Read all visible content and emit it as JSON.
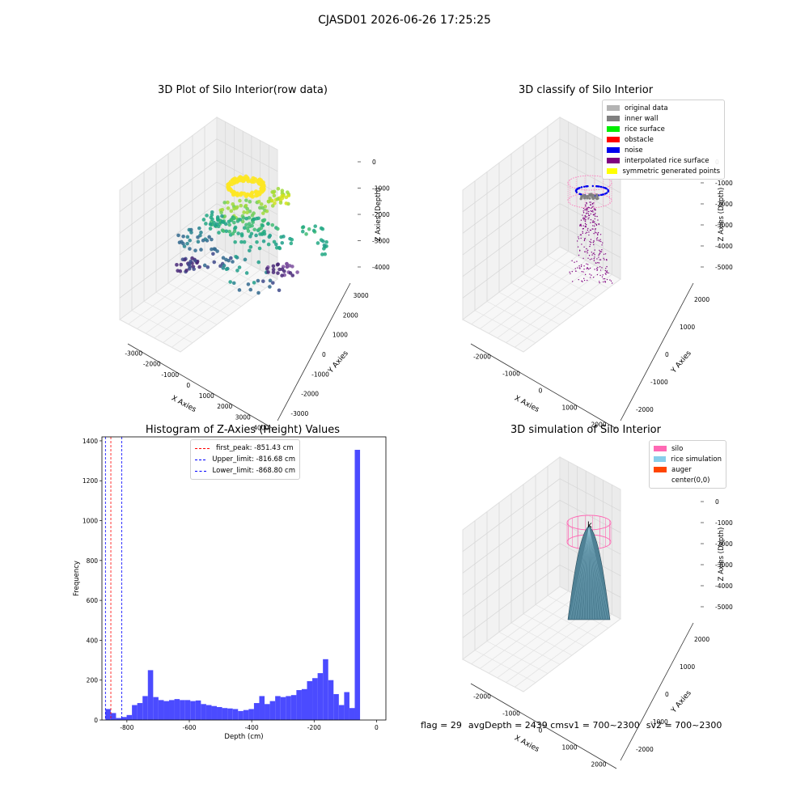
{
  "suptitle": "CJASD01 2026-06-26 17:25:25",
  "plots": {
    "raw": {
      "title": "3D Plot of Silo Interior(row data)",
      "xlabel": "X Axies",
      "ylabel": "Y Axies",
      "zlabel": "Z Axies (Depth)",
      "xticks": [
        "-3000",
        "-2000",
        "-1000",
        "0",
        "1000",
        "2000",
        "3000",
        "4000"
      ],
      "yticks": [
        "-3000",
        "-2000",
        "-1000",
        "0",
        "1000",
        "2000",
        "3000"
      ],
      "zticks": [
        "0",
        "-1000",
        "-2000",
        "-3000",
        "-4000"
      ]
    },
    "classify": {
      "title": "3D classify of Silo Interior",
      "xlabel": "X Axies",
      "ylabel": "Y Axies",
      "zlabel": "Z Axies (Depth)",
      "xticks": [
        "-2000",
        "-1000",
        "0",
        "1000",
        "2000"
      ],
      "yticks": [
        "-2000",
        "-1000",
        "0",
        "1000",
        "2000"
      ],
      "zticks": [
        "0",
        "-1000",
        "-2000",
        "-3000",
        "-4000",
        "-5000"
      ],
      "legend": [
        {
          "label": "original data",
          "color": "#b4b4b4"
        },
        {
          "label": "inner wall",
          "color": "#808080"
        },
        {
          "label": "rice surface",
          "color": "#00ee00"
        },
        {
          "label": "obstacle",
          "color": "#ff0000"
        },
        {
          "label": "noise",
          "color": "#0000ee"
        },
        {
          "label": "interpolated rice surface",
          "color": "#800080"
        },
        {
          "label": "symmetric generated points",
          "color": "#ffff00"
        }
      ]
    },
    "simulation": {
      "title": "3D simulation of Silo Interior",
      "xlabel": "X Axies",
      "ylabel": "Y Axies",
      "zlabel": "Z Axies (Depth)",
      "xticks": [
        "-2000",
        "-1000",
        "0",
        "1000",
        "2000"
      ],
      "yticks": [
        "-2000",
        "-1000",
        "0",
        "1000",
        "2000"
      ],
      "zticks": [
        "0",
        "-1000",
        "-2000",
        "-3000",
        "-4000",
        "-5000"
      ],
      "legend": [
        {
          "label": "silo",
          "color": "#ff69b4"
        },
        {
          "label": "rice simulation",
          "color": "#87ceeb"
        },
        {
          "label": "auger",
          "color": "#ff4500"
        },
        {
          "label": "center(0,0)",
          "color": "#ffffff"
        }
      ]
    }
  },
  "chart_data": {
    "type": "bar",
    "title": "Histogram of Z-Axies (Height) Values",
    "xlabel": "Depth (cm)",
    "ylabel": "Frequency",
    "xlim": [
      -880,
      30
    ],
    "ylim": [
      0,
      1420
    ],
    "xticks": [
      -800,
      -600,
      -400,
      -200,
      0
    ],
    "yticks": [
      0,
      200,
      400,
      600,
      800,
      1000,
      1200,
      1400
    ],
    "bar_color": "#4b4bff",
    "bin_width": 17,
    "bins_start": -868.8,
    "values": [
      55,
      35,
      10,
      15,
      25,
      75,
      85,
      120,
      250,
      115,
      100,
      95,
      100,
      105,
      100,
      100,
      95,
      98,
      80,
      75,
      70,
      65,
      60,
      58,
      55,
      45,
      50,
      55,
      85,
      120,
      80,
      95,
      120,
      115,
      120,
      125,
      150,
      155,
      195,
      210,
      235,
      305,
      200,
      130,
      75,
      140,
      60,
      1355
    ],
    "vlines": [
      {
        "label": "first_peak: -851.43 cm",
        "x": -851.43,
        "color": "#ff0000"
      },
      {
        "label": "Upper_limit: -816.68 cm",
        "x": -816.68,
        "color": "#0000ff"
      },
      {
        "label": "Lower_limit: -868.80 cm",
        "x": -868.8,
        "color": "#0000ff"
      }
    ]
  },
  "status": {
    "flag": "flag = 29",
    "avg": "avgDepth = 2439 cm",
    "sv1": "sv1 = 700~2300",
    "sv2": "sv2 = 700~2300"
  }
}
